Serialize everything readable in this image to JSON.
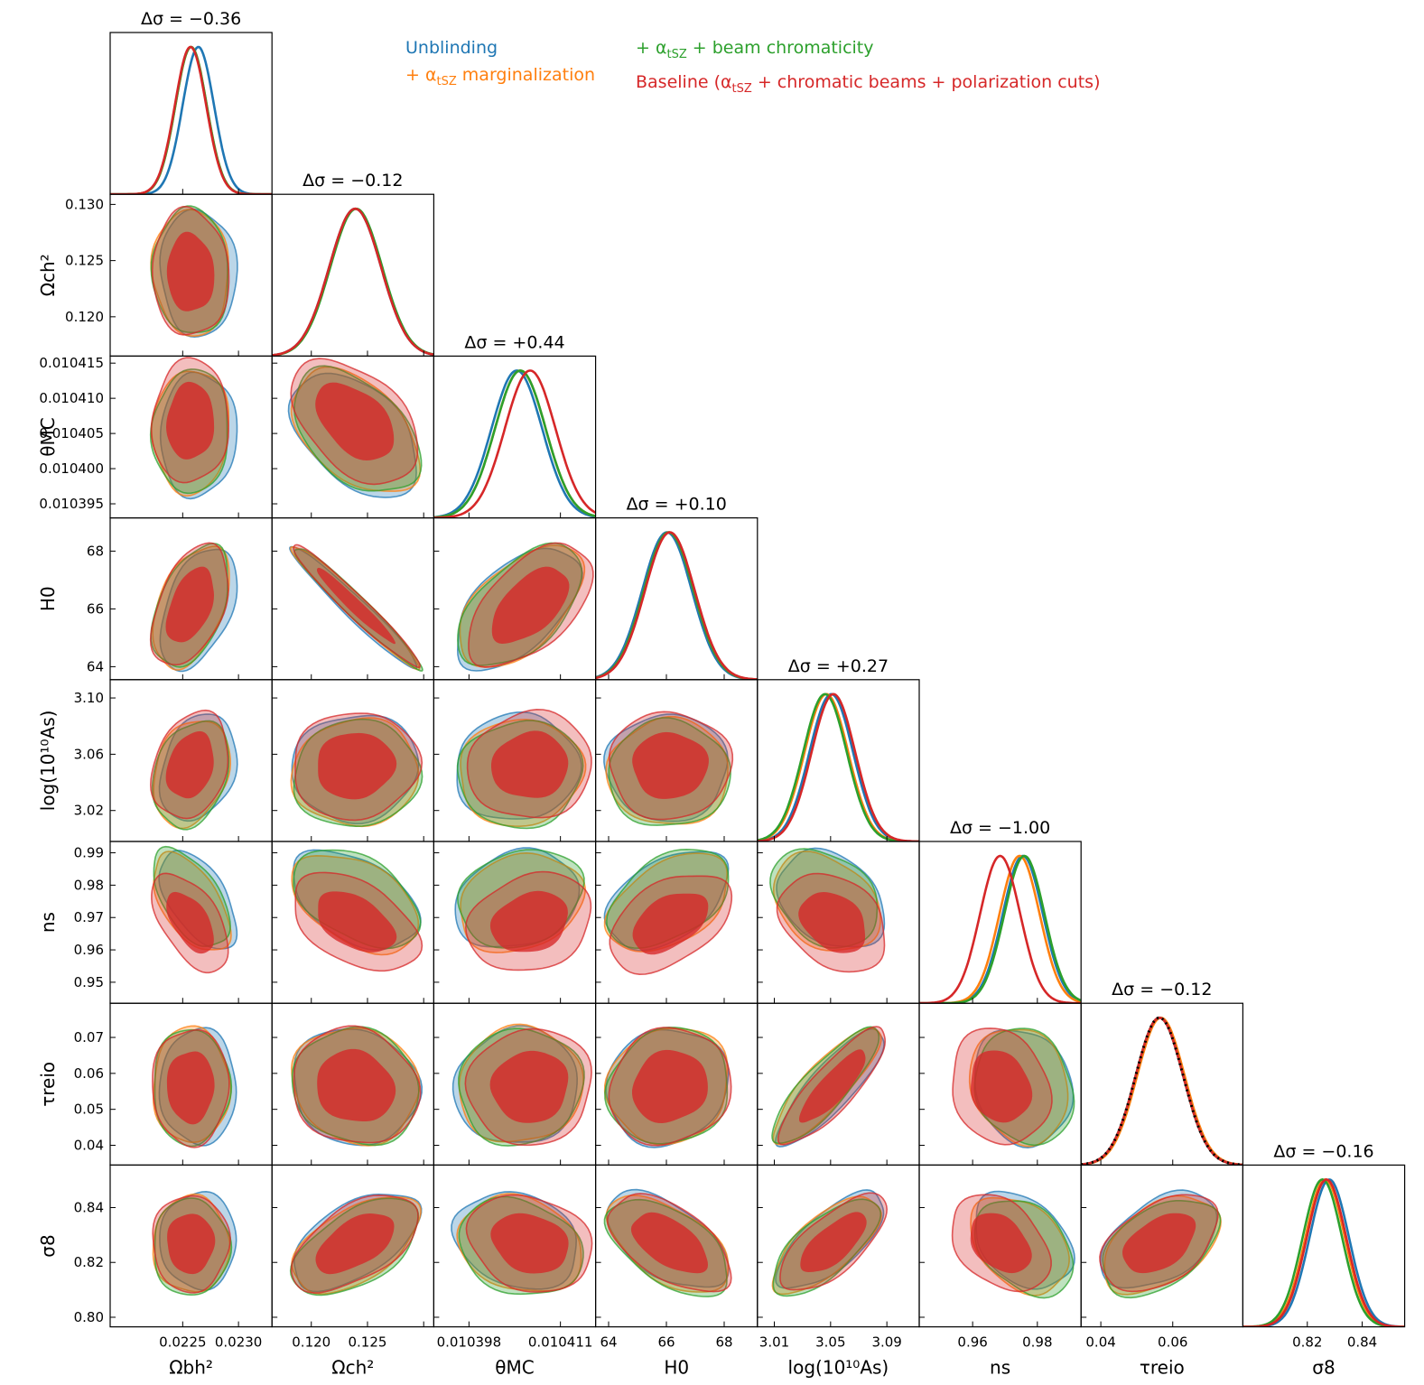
{
  "chart_data": {
    "type": "triangle",
    "title": "",
    "parameters": [
      {
        "key": "ombh2",
        "label": "Ωbh²",
        "range": [
          0.02185,
          0.0233
        ],
        "ticks": [
          0.0225,
          0.023
        ],
        "tick_labels": [
          "0.0225",
          "0.0230"
        ]
      },
      {
        "key": "omch2",
        "label": "Ωch²",
        "range": [
          0.1165,
          0.1309
        ],
        "ticks": [
          0.12,
          0.125,
          0.13
        ],
        "tick_labels": [
          "0.120",
          "0.125",
          "0.130"
        ],
        "xtick_labels": [
          "0.120",
          "0.125"
        ]
      },
      {
        "key": "theta",
        "label": "θMC",
        "range": [
          0.010393,
          0.010416
        ],
        "ticks": [
          0.010395,
          0.0104,
          0.010405,
          0.01041,
          0.010415
        ],
        "tick_labels": [
          "0.010395",
          "0.010400",
          "0.010405",
          "0.010410",
          "0.010415"
        ],
        "xticks": [
          0.010398,
          0.010411
        ],
        "xtick_labels": [
          "0.010398",
          "0.010411"
        ]
      },
      {
        "key": "H0",
        "label": "H0",
        "range": [
          63.55,
          69.15
        ],
        "ticks": [
          64,
          66,
          68
        ],
        "tick_labels": [
          "64",
          "66",
          "68"
        ]
      },
      {
        "key": "logA",
        "label": "log(10¹⁰As)",
        "range": [
          2.998,
          3.113
        ],
        "ticks": [
          3.02,
          3.06,
          3.1
        ],
        "tick_labels": [
          "3.02",
          "3.06",
          "3.10"
        ],
        "xticks": [
          3.01,
          3.05,
          3.09
        ],
        "xtick_labels": [
          "3.01",
          "3.05",
          "3.09"
        ]
      },
      {
        "key": "ns",
        "label": "ns",
        "range": [
          0.9435,
          0.9935
        ],
        "ticks": [
          0.95,
          0.96,
          0.97,
          0.98,
          0.99
        ],
        "tick_labels": [
          "0.95",
          "0.96",
          "0.97",
          "0.98",
          "0.99"
        ],
        "xticks": [
          0.96,
          0.98
        ],
        "xtick_labels": [
          "0.96",
          "0.98"
        ]
      },
      {
        "key": "tau",
        "label": "τreio",
        "range": [
          0.0345,
          0.0795
        ],
        "ticks": [
          0.04,
          0.05,
          0.06,
          0.07
        ],
        "tick_labels": [
          "0.04",
          "0.05",
          "0.06",
          "0.07"
        ],
        "xticks": [
          0.04,
          0.06
        ],
        "xtick_labels": [
          "0.04",
          "0.06"
        ]
      },
      {
        "key": "sigma8",
        "label": "σ8",
        "range": [
          0.7965,
          0.8555
        ],
        "ticks": [
          0.8,
          0.82,
          0.84
        ],
        "tick_labels": [
          "0.80",
          "0.82",
          "0.84"
        ],
        "xticks": [
          0.82,
          0.84
        ],
        "xtick_labels": [
          "0.82",
          "0.84"
        ]
      }
    ],
    "diagonal_titles": [
      "Δσ = −0.36",
      "Δσ = −0.12",
      "Δσ = +0.44",
      "Δσ = +0.10",
      "Δσ = +0.27",
      "Δσ = −1.00",
      "Δσ = −0.12",
      "Δσ = −0.16"
    ],
    "series": [
      {
        "name": "Unblinding",
        "color": "#1f77b4",
        "mean": [
          0.02264,
          0.1239,
          0.0104048,
          66.02,
          3.0505,
          0.9755,
          0.0563,
          0.828
        ],
        "sigma": [
          0.00014,
          0.0023,
          3.6e-06,
          0.86,
          0.0155,
          0.0062,
          0.0066,
          0.0072
        ]
      },
      {
        "name": "+ αtSZ marginalization",
        "color": "#ff7f0e",
        "mean": [
          0.022575,
          0.12395,
          0.0104053,
          66.08,
          3.047,
          0.9745,
          0.0567,
          0.8265
        ],
        "sigma": [
          0.00014,
          0.0023,
          3.6e-06,
          0.86,
          0.0155,
          0.0062,
          0.0066,
          0.0072
        ]
      },
      {
        "name": "+ αtSZ + beam chromaticity",
        "color": "#2ca02c",
        "mean": [
          0.022575,
          0.124,
          0.0104053,
          66.08,
          3.046,
          0.976,
          0.0563,
          0.8255
        ],
        "sigma": [
          0.00014,
          0.0023,
          3.6e-06,
          0.86,
          0.0155,
          0.0062,
          0.0066,
          0.0072
        ]
      },
      {
        "name": "Baseline (αtSZ + chromatic beams + polarization cuts)",
        "color": "#d62728",
        "mean": [
          0.02257,
          0.1239,
          0.0104067,
          66.12,
          3.052,
          0.9685,
          0.0563,
          0.827
        ],
        "sigma": [
          0.00014,
          0.0023,
          3.6e-06,
          0.86,
          0.0155,
          0.0062,
          0.0066,
          0.0072
        ]
      }
    ],
    "reference_curve": {
      "name": "prior",
      "panel": "tau",
      "style": "black dotted",
      "mean": 0.0563,
      "sigma": 0.0066
    },
    "correlations": {
      "ombh2-omch2": -0.05,
      "ombh2-theta": 0.05,
      "ombh2-H0": 0.45,
      "ombh2-logA": 0.25,
      "ombh2-ns": -0.55,
      "ombh2-tau": 0.0,
      "ombh2-sigma8": 0.0,
      "omch2-theta": -0.45,
      "omch2-H0": -0.97,
      "omch2-logA": 0.05,
      "omch2-ns": -0.45,
      "omch2-tau": -0.1,
      "omch2-sigma8": 0.55,
      "theta-H0": 0.55,
      "theta-logA": 0.05,
      "theta-ns": 0.2,
      "theta-tau": 0.05,
      "theta-sigma8": -0.2,
      "H0-logA": 0.0,
      "H0-ns": 0.45,
      "H0-tau": 0.1,
      "H0-sigma8": -0.55,
      "logA-ns": -0.3,
      "logA-tau": 0.85,
      "logA-sigma8": 0.7,
      "ns-tau": -0.15,
      "ns-sigma8": -0.35,
      "tau-sigma8": 0.45
    },
    "legend": {
      "position": "top-right"
    }
  },
  "legend_items": {
    "l1": "Unblinding",
    "l2_prefix": "+ α",
    "l2_sub": "tSZ",
    "l2_suffix": " marginalization",
    "l3_prefix": "+ α",
    "l3_sub": "tSZ",
    "l3_suffix": " + beam chromaticity",
    "l4_prefix": "Baseline (α",
    "l4_sub": "tSZ",
    "l4_suffix": " + chromatic beams + polarization cuts)"
  },
  "colors": {
    "blue": "#1f77b4",
    "orange": "#ff7f0e",
    "green": "#2ca02c",
    "red": "#d62728"
  }
}
